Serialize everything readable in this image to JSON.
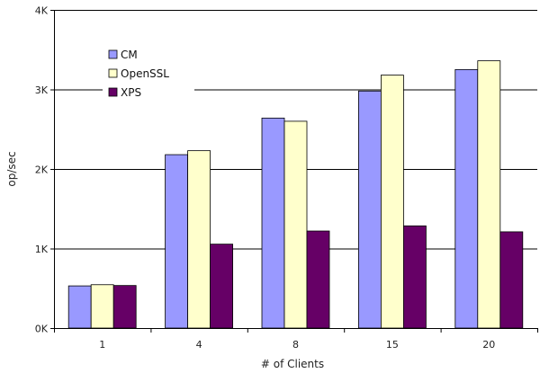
{
  "chart_data": {
    "type": "bar",
    "title": "",
    "xlabel": "# of Clients",
    "ylabel": "op/sec",
    "categories": [
      "1",
      "4",
      "8",
      "15",
      "20"
    ],
    "ylim": [
      0,
      4000
    ],
    "yticks": [
      0,
      1000,
      2000,
      3000,
      4000
    ],
    "ytick_labels": [
      "0K",
      "1K",
      "2K",
      "3K",
      "4K"
    ],
    "grid": "horizontal",
    "legend_position": "top-left",
    "series": [
      {
        "name": "CM",
        "color": "#9999ff",
        "values": [
          530,
          2180,
          2640,
          2980,
          3250
        ]
      },
      {
        "name": "OpenSSL",
        "color": "#ffffcc",
        "values": [
          545,
          2230,
          2600,
          3180,
          3360
        ]
      },
      {
        "name": "XPS",
        "color": "#660066",
        "values": [
          535,
          1055,
          1220,
          1285,
          1210
        ]
      }
    ]
  }
}
